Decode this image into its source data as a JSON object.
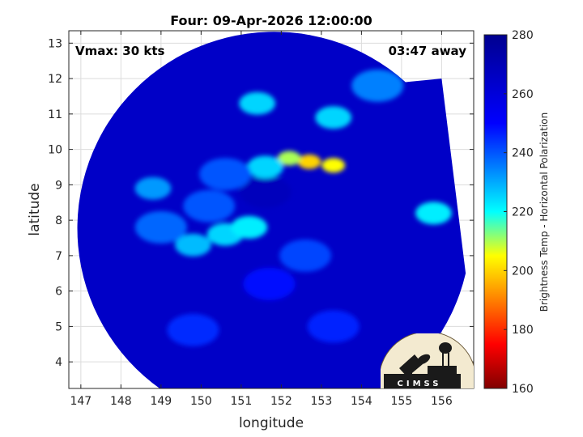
{
  "chart_data": {
    "type": "heatmap",
    "title": "Four: 09-Apr-2026 12:00:00",
    "xlabel": "longitude",
    "ylabel": "latitude",
    "xlim": [
      146.7,
      156.8
    ],
    "ylim": [
      3.25,
      13.35
    ],
    "x_ticks": [
      147,
      148,
      149,
      150,
      151,
      152,
      153,
      154,
      155,
      156
    ],
    "y_ticks": [
      4,
      5,
      6,
      7,
      8,
      9,
      10,
      11,
      12,
      13
    ],
    "grid": true,
    "annotations": {
      "top_left": "Vmax: 30 kts",
      "top_right": "03:47 away"
    },
    "colorbar": {
      "label": "Brightness Temp - Horizontal Polarization",
      "range": [
        160,
        280
      ],
      "ticks": [
        160,
        180,
        200,
        220,
        240,
        260,
        280
      ],
      "colormap": "jet",
      "colors": [
        "#800000",
        "#ff0000",
        "#ffff00",
        "#00ffff",
        "#0000ff",
        "#00008f"
      ]
    },
    "swath_background_value": 265,
    "features": [
      {
        "lon": 151.6,
        "lat": 8.8,
        "value": 268,
        "note": "center"
      },
      {
        "lon": 152.7,
        "lat": 9.65,
        "value": 200
      },
      {
        "lon": 153.3,
        "lat": 9.55,
        "value": 205
      },
      {
        "lon": 152.2,
        "lat": 9.75,
        "value": 210
      },
      {
        "lon": 151.6,
        "lat": 9.5,
        "value": 225
      },
      {
        "lon": 150.6,
        "lat": 9.3,
        "value": 240
      },
      {
        "lon": 150.2,
        "lat": 8.4,
        "value": 240
      },
      {
        "lon": 149.8,
        "lat": 7.3,
        "value": 228
      },
      {
        "lon": 150.6,
        "lat": 7.6,
        "value": 225
      },
      {
        "lon": 151.2,
        "lat": 7.8,
        "value": 222
      },
      {
        "lon": 149.0,
        "lat": 7.8,
        "value": 238
      },
      {
        "lon": 148.8,
        "lat": 8.9,
        "value": 232
      },
      {
        "lon": 151.4,
        "lat": 11.3,
        "value": 225
      },
      {
        "lon": 153.3,
        "lat": 10.9,
        "value": 225
      },
      {
        "lon": 154.4,
        "lat": 11.8,
        "value": 235
      },
      {
        "lon": 155.8,
        "lat": 8.2,
        "value": 222
      },
      {
        "lon": 152.6,
        "lat": 7.0,
        "value": 242
      },
      {
        "lon": 151.7,
        "lat": 6.2,
        "value": 248
      },
      {
        "lon": 153.3,
        "lat": 5.0,
        "value": 246
      },
      {
        "lon": 149.8,
        "lat": 4.9,
        "value": 245
      }
    ]
  },
  "logo": {
    "text": "CIMSS"
  }
}
